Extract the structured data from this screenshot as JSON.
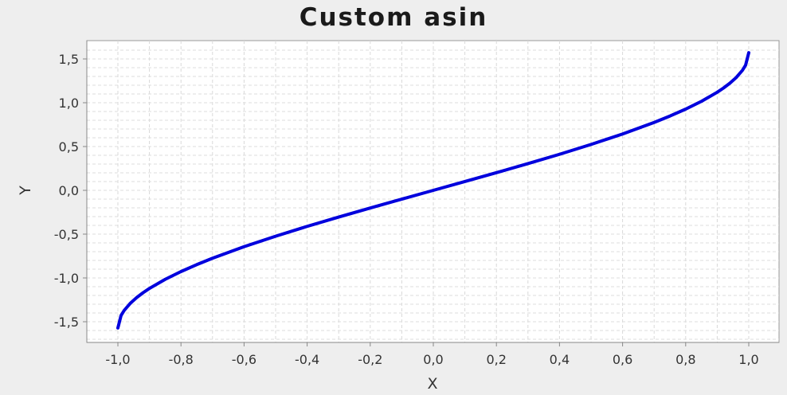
{
  "title": "Custom asin",
  "chart_data": {
    "type": "line",
    "title": "Custom asin",
    "xlabel": "X",
    "ylabel": "Y",
    "xlim": [
      -1.0,
      1.0
    ],
    "ylim": [
      -1.5708,
      1.5708
    ],
    "grid": true,
    "x_ticks": [
      -1.0,
      -0.8,
      -0.6,
      -0.4,
      -0.2,
      0.0,
      0.2,
      0.4,
      0.6,
      0.8,
      1.0
    ],
    "x_tick_labels": [
      "-1,0",
      "-0,8",
      "-0,6",
      "-0,4",
      "-0,2",
      "0,0",
      "0,2",
      "0,4",
      "0,6",
      "0,8",
      "1,0"
    ],
    "y_ticks": [
      -1.5,
      -1.0,
      -0.5,
      0.0,
      0.5,
      1.0,
      1.5
    ],
    "y_tick_labels": [
      "-1,5",
      "-1,0",
      "-0,5",
      "0,0",
      "0,5",
      "1,0",
      "1,5"
    ],
    "series": [
      {
        "color": "#0000dd",
        "x": [
          -1.0,
          -0.99,
          -0.98,
          -0.96,
          -0.94,
          -0.92,
          -0.9,
          -0.85,
          -0.8,
          -0.75,
          -0.7,
          -0.6,
          -0.5,
          -0.4,
          -0.3,
          -0.2,
          -0.1,
          0.0,
          0.1,
          0.2,
          0.3,
          0.4,
          0.5,
          0.6,
          0.7,
          0.75,
          0.8,
          0.85,
          0.9,
          0.92,
          0.94,
          0.96,
          0.98,
          0.99,
          1.0
        ],
        "y": [
          -1.5708,
          -1.4293,
          -1.3705,
          -1.287,
          -1.2226,
          -1.1681,
          -1.1198,
          -1.016,
          -0.9273,
          -0.8481,
          -0.7754,
          -0.6435,
          -0.5236,
          -0.4115,
          -0.3047,
          -0.2014,
          -0.1002,
          0.0,
          0.1002,
          0.2014,
          0.3047,
          0.4115,
          0.5236,
          0.6435,
          0.7754,
          0.8481,
          0.9273,
          1.016,
          1.1198,
          1.1681,
          1.2226,
          1.287,
          1.3705,
          1.4293,
          1.5708
        ]
      }
    ]
  }
}
